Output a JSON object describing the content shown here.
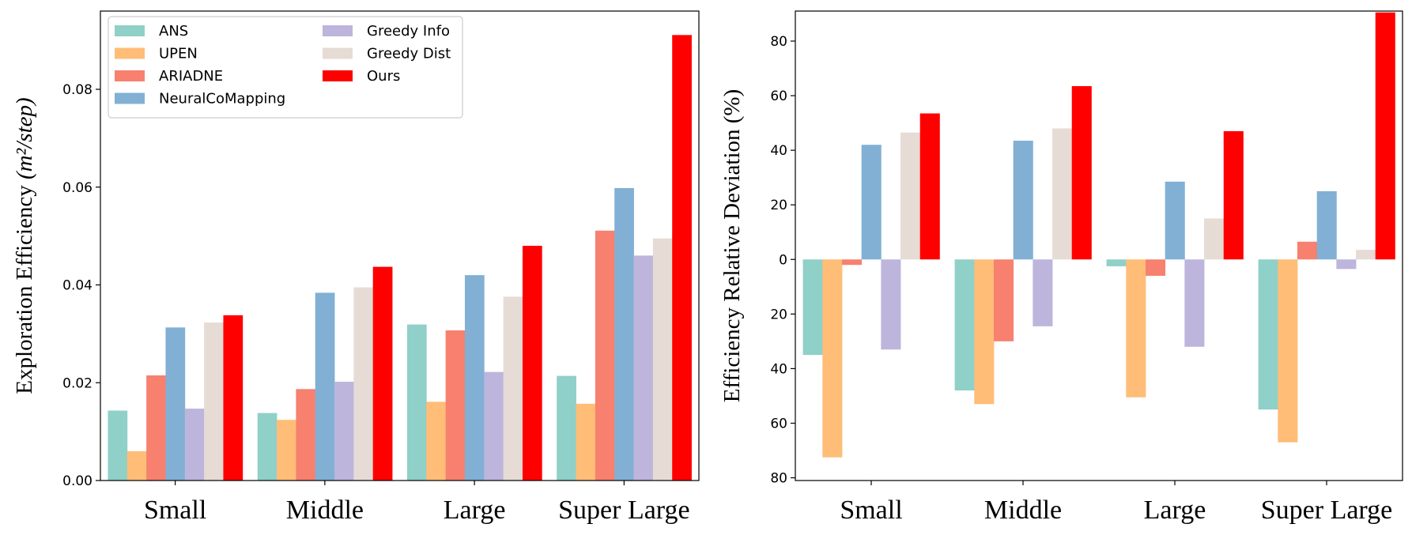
{
  "chart_data": [
    {
      "type": "bar",
      "ylabel": "Exploration Efficiency",
      "ylabel_unit": "(m²/step)",
      "categories": [
        "Small",
        "Middle",
        "Large",
        "Super Large"
      ],
      "ylim": [
        0,
        0.096
      ],
      "yticks": [
        0.0,
        0.02,
        0.04,
        0.06,
        0.08
      ],
      "ytick_labels": [
        "0.00",
        "0.02",
        "0.04",
        "0.06",
        "0.08"
      ],
      "legend": "top-left",
      "series": [
        {
          "name": "ANS",
          "color": "#8fd0c8",
          "values": [
            0.0143,
            0.0138,
            0.0319,
            0.0214
          ]
        },
        {
          "name": "UPEN",
          "color": "#ffbd78",
          "values": [
            0.006,
            0.0124,
            0.0161,
            0.0157
          ]
        },
        {
          "name": "ARIADNE",
          "color": "#f7806f",
          "values": [
            0.0215,
            0.0187,
            0.0307,
            0.0511
          ]
        },
        {
          "name": "NeuralCoMapping",
          "color": "#81b0d4",
          "values": [
            0.0313,
            0.0384,
            0.042,
            0.0598
          ]
        },
        {
          "name": "Greedy Info",
          "color": "#bdb5dc",
          "values": [
            0.0147,
            0.0202,
            0.0222,
            0.046
          ]
        },
        {
          "name": "Greedy Dist",
          "color": "#e6dbd5",
          "values": [
            0.0323,
            0.0395,
            0.0376,
            0.0495
          ]
        },
        {
          "name": "Ours",
          "color": "#ff0000",
          "values": [
            0.0338,
            0.0437,
            0.048,
            0.0911
          ]
        }
      ]
    },
    {
      "type": "bar",
      "ylabel": "Efficiency Relative Deviation (%)",
      "categories": [
        "Small",
        "Middle",
        "Large",
        "Super Large"
      ],
      "ylim": [
        -81,
        91
      ],
      "yticks": [
        -80,
        -60,
        -40,
        -20,
        0,
        20,
        40,
        60,
        80
      ],
      "ytick_labels": [
        "80",
        "60",
        "40",
        "20",
        "0",
        "20",
        "40",
        "60",
        "80"
      ],
      "series": [
        {
          "name": "ANS",
          "color": "#8fd0c8",
          "values": [
            -35,
            -48,
            -2.5,
            -55
          ]
        },
        {
          "name": "UPEN",
          "color": "#ffbd78",
          "values": [
            -72.5,
            -53,
            -50.5,
            -67
          ]
        },
        {
          "name": "ARIADNE",
          "color": "#f7806f",
          "values": [
            -2,
            -30,
            -6,
            6.5
          ]
        },
        {
          "name": "NeuralCoMapping",
          "color": "#81b0d4",
          "values": [
            42,
            43.5,
            28.5,
            25
          ]
        },
        {
          "name": "Greedy Info",
          "color": "#bdb5dc",
          "values": [
            -33,
            -24.5,
            -32,
            -3.5
          ]
        },
        {
          "name": "Greedy Dist",
          "color": "#e6dbd5",
          "values": [
            46.5,
            48,
            15,
            3.5
          ]
        },
        {
          "name": "Ours",
          "color": "#ff0000",
          "values": [
            53.5,
            63.5,
            47,
            90.5
          ]
        }
      ]
    }
  ]
}
